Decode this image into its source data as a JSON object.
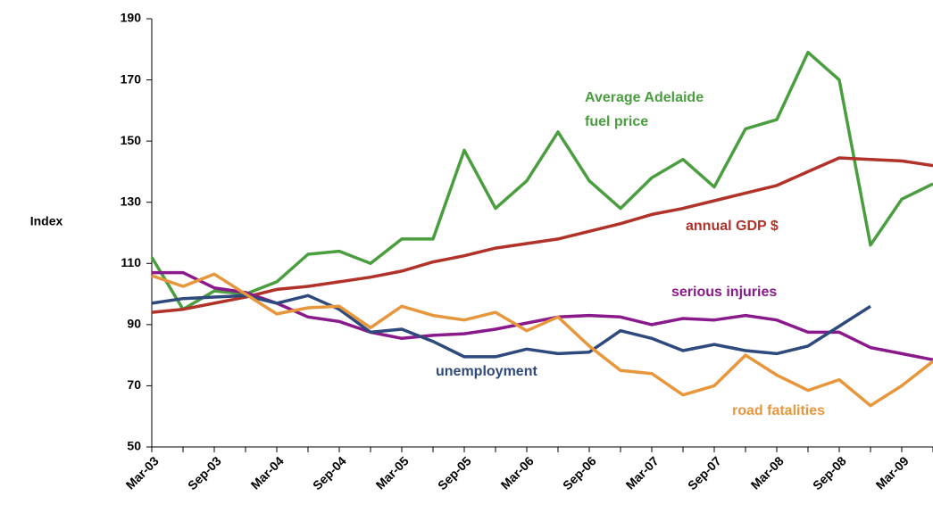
{
  "chart_data": {
    "type": "line",
    "y_label": "Index",
    "categories": [
      "Mar-03",
      null,
      "Sep-03",
      null,
      "Mar-04",
      null,
      "Sep-04",
      null,
      "Mar-05",
      null,
      "Sep-05",
      null,
      "Mar-06",
      null,
      "Sep-06",
      null,
      "Mar-07",
      null,
      "Sep-07",
      null,
      "Mar-08",
      null,
      "Sep-08",
      null,
      "Mar-09",
      null
    ],
    "series": [
      {
        "name": "Average Adelaide fuel price",
        "color": "#4a9e3f",
        "values": [
          112,
          95,
          101,
          100,
          104,
          113,
          114,
          110,
          118,
          118,
          147,
          128,
          137,
          153,
          137,
          128,
          138,
          144,
          135,
          154,
          157,
          179,
          170,
          116,
          131,
          136
        ]
      },
      {
        "name": "annual GDP $",
        "color": "#b03228",
        "values": [
          94,
          95,
          97,
          99,
          101.5,
          102.5,
          104,
          105.5,
          107.5,
          110.5,
          112.5,
          115,
          116.5,
          118,
          120.5,
          123,
          126,
          128,
          130.5,
          133,
          135.5,
          140,
          144.5,
          144,
          143.5,
          142
        ]
      },
      {
        "name": "serious injuries",
        "color": "#8a1a8c",
        "values": [
          107,
          107,
          102,
          100.5,
          97,
          92.5,
          91,
          87.5,
          85.5,
          86.5,
          87,
          88.5,
          90.5,
          92.5,
          93,
          92.5,
          90,
          92,
          91.5,
          93,
          91.5,
          87.5,
          87.5,
          82.5,
          80.5,
          78.5
        ]
      },
      {
        "name": "unemployment",
        "color": "#2e4a7d",
        "values": [
          97,
          98.5,
          99,
          99.5,
          97,
          99.5,
          95,
          87.5,
          88.5,
          84.5,
          79.5,
          79.5,
          82,
          80.5,
          81,
          88,
          85.5,
          81.5,
          83.5,
          81.5,
          80.5,
          83,
          89.5,
          96,
          null,
          null
        ]
      },
      {
        "name": "road fatalities",
        "color": "#e8963c",
        "values": [
          106,
          102.5,
          106.5,
          100,
          93.5,
          95.5,
          96,
          89,
          96,
          93,
          91.5,
          94,
          88,
          92.5,
          83,
          75,
          74,
          67,
          70,
          80,
          73.5,
          68.5,
          72,
          63.5,
          70,
          78
        ]
      }
    ],
    "ylim": [
      50,
      190
    ],
    "yticks": [
      50,
      70,
      90,
      110,
      130,
      150,
      170,
      190
    ],
    "grid": false
  }
}
